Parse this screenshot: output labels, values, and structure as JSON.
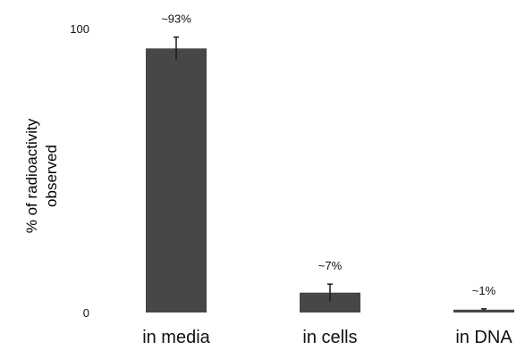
{
  "chart_data": {
    "type": "bar",
    "categories": [
      "in media",
      "in cells",
      "in DNA"
    ],
    "values": [
      93,
      7,
      1
    ],
    "error": [
      4,
      3,
      0.3
    ],
    "data_labels": [
      "~93%",
      "~7%",
      "~1%"
    ],
    "ylabel_lines": [
      "% of radioactivity",
      "observed"
    ],
    "xlabel": "",
    "ylim": [
      0,
      100
    ],
    "yticks": [
      0,
      100
    ],
    "ytick_labels": [
      "0",
      "100"
    ],
    "grid": false,
    "legend": "none",
    "bar_color": "#474747",
    "text_color": "#111111"
  }
}
